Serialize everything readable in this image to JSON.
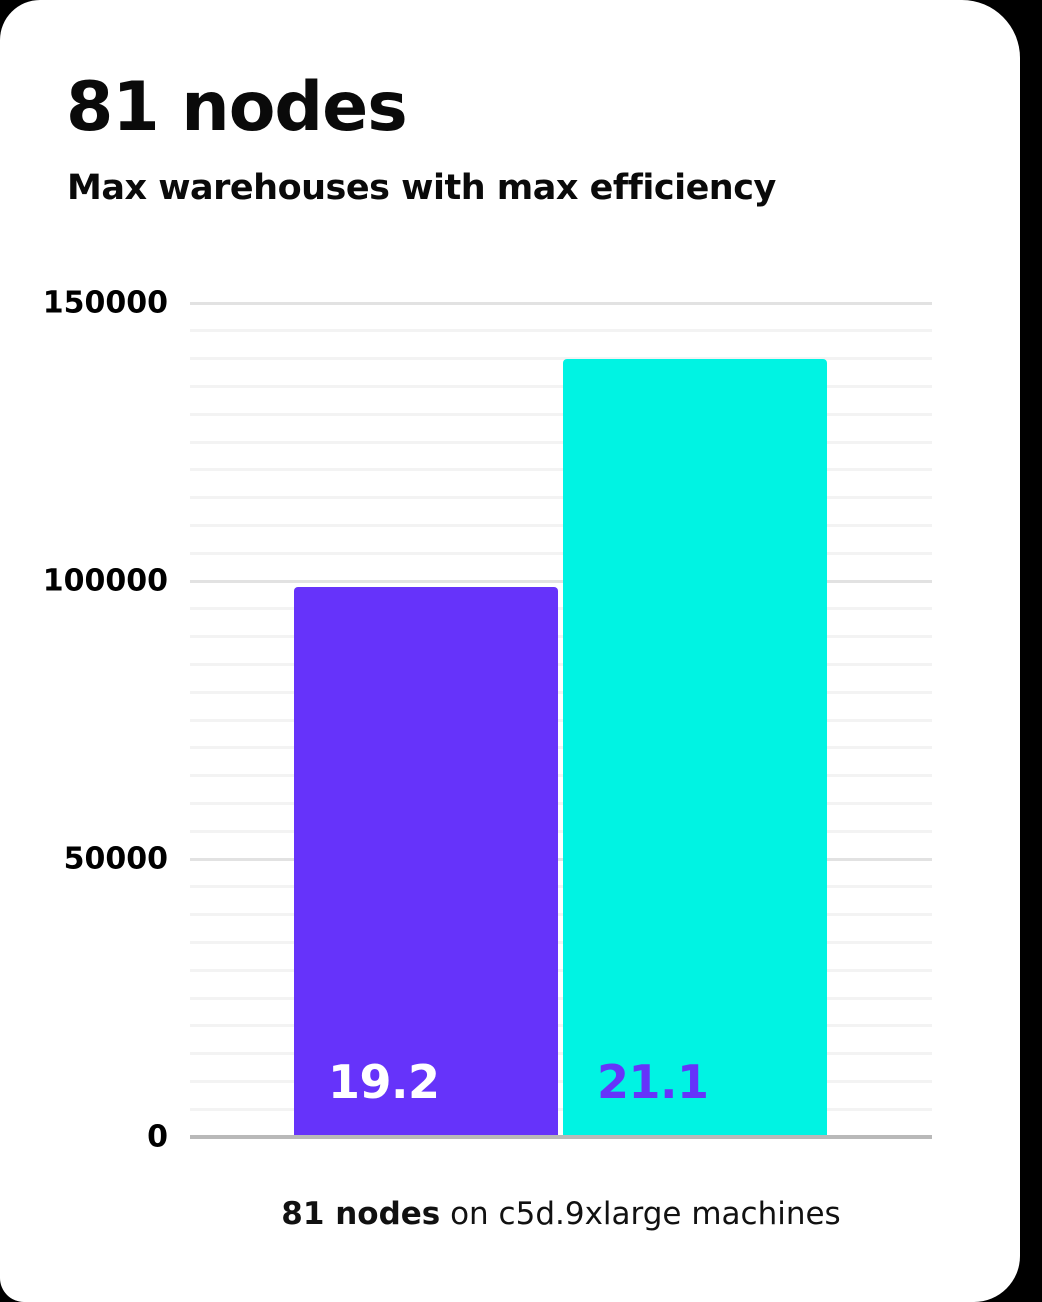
{
  "page": {
    "background_color": "#000000",
    "card_color": "#ffffff"
  },
  "header": {
    "title": "81 nodes",
    "subtitle": "Max warehouses with max efficiency"
  },
  "caption": {
    "bold": "81 nodes",
    "rest": " on c5d.9xlarge machines"
  },
  "chart_data": {
    "type": "bar",
    "title": "81 nodes",
    "subtitle": "Max warehouses with max efficiency",
    "values": [
      99000,
      140000
    ],
    "bar_labels": [
      "19.2",
      "21.1"
    ],
    "bar_colors": [
      "#6633fa",
      "#00f3e3"
    ],
    "bar_label_colors": [
      "#ffffff",
      "#6633fa"
    ],
    "ylim": [
      0,
      150000
    ],
    "yticks": [
      150000,
      100000,
      50000,
      0
    ],
    "minor_grid_step": 5000,
    "major_grid_step": 50000,
    "grid": true,
    "legend": false,
    "xlabel": "",
    "ylabel": "",
    "caption": "81 nodes on c5d.9xlarge machines"
  }
}
